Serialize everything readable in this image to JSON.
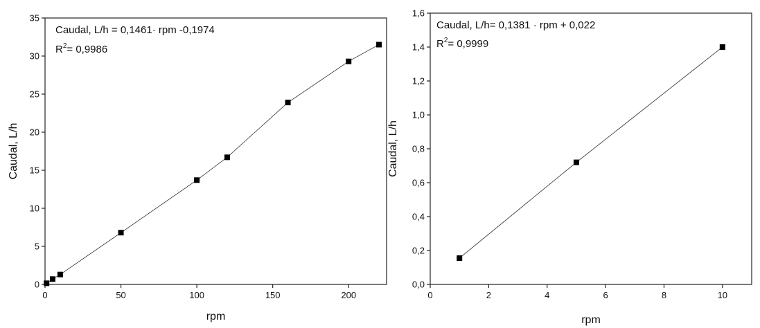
{
  "chart_data": [
    {
      "type": "scatter",
      "xlabel": "rpm",
      "ylabel": "Caudal, L/h",
      "xlim": [
        0,
        225
      ],
      "ylim": [
        0,
        35
      ],
      "xticks": [
        0,
        50,
        100,
        150,
        200
      ],
      "yticks": [
        0,
        5,
        10,
        15,
        20,
        25,
        30,
        35
      ],
      "xtick_labels": [
        "0",
        "50",
        "100",
        "150",
        "200"
      ],
      "ytick_labels": [
        "0",
        "5",
        "10",
        "15",
        "20",
        "25",
        "30",
        "35"
      ],
      "annotation": {
        "equation": "Caudal, L/h = 0,1461· rpm -0,1974",
        "r2_prefix": "R",
        "r2_sup": "2",
        "r2_value": "= 0,9986"
      },
      "connect_points": true,
      "x": [
        1,
        5,
        10,
        50,
        100,
        120,
        160,
        200,
        220
      ],
      "y": [
        0.15,
        0.7,
        1.3,
        6.8,
        13.7,
        16.7,
        23.9,
        29.3,
        31.5
      ]
    },
    {
      "type": "scatter",
      "xlabel": "rpm",
      "ylabel": "Caudal, L/h",
      "xlim": [
        0,
        11
      ],
      "ylim": [
        0,
        1.6
      ],
      "xticks": [
        0,
        2,
        4,
        6,
        8,
        10
      ],
      "yticks": [
        0,
        0.2,
        0.4,
        0.6,
        0.8,
        1.0,
        1.2,
        1.4,
        1.6
      ],
      "xtick_labels": [
        "0",
        "2",
        "4",
        "6",
        "8",
        "10"
      ],
      "ytick_labels": [
        "0,0",
        "0,2",
        "0,4",
        "0,6",
        "0,8",
        "1,0",
        "1,2",
        "1,4",
        "1,6"
      ],
      "annotation": {
        "equation": "Caudal, L/h= 0,1381 · rpm + 0,022",
        "r2_prefix": "R",
        "r2_sup": "2",
        "r2_value": "= 0,9999"
      },
      "connect_points": true,
      "x": [
        1,
        5,
        10
      ],
      "y": [
        0.155,
        0.72,
        1.4
      ]
    }
  ]
}
